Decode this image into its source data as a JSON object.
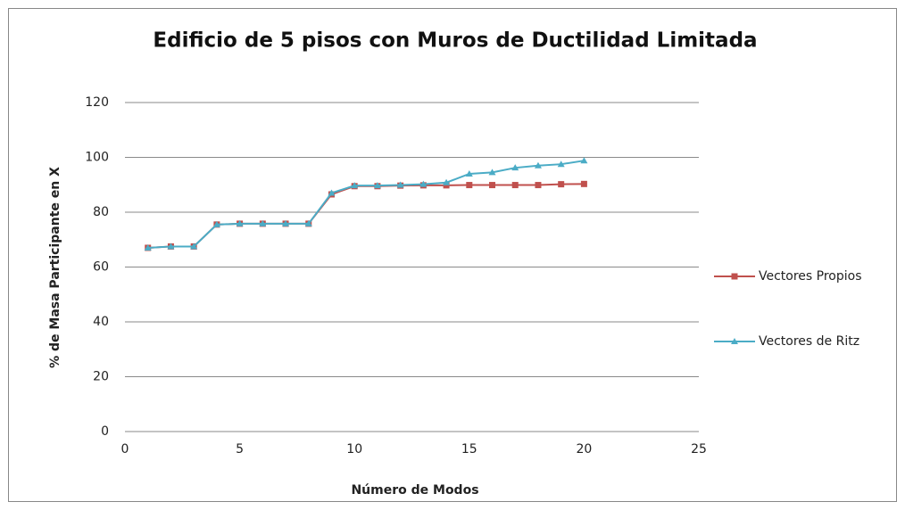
{
  "chart_data": {
    "type": "line",
    "title": "Edificio de 5 pisos con Muros de Ductilidad Limitada",
    "x_label": "Número de Modos",
    "y_label": "% de Masa  Participante en X",
    "x": [
      1,
      2,
      3,
      4,
      5,
      6,
      7,
      8,
      9,
      10,
      11,
      12,
      13,
      14,
      15,
      16,
      17,
      18,
      19,
      20
    ],
    "series": [
      {
        "name": "Vectores Propios",
        "color": "#c0504d",
        "marker": "square",
        "values": [
          67,
          67.5,
          67.5,
          75.5,
          75.8,
          75.8,
          75.8,
          75.8,
          86.5,
          89.5,
          89.5,
          89.7,
          89.8,
          89.8,
          89.9,
          89.9,
          89.9,
          89.9,
          90.2,
          90.3
        ]
      },
      {
        "name": "Vectores de Ritz",
        "color": "#4bacc6",
        "marker": "triangle",
        "values": [
          67,
          67.5,
          67.5,
          75.5,
          75.8,
          75.8,
          75.8,
          75.8,
          87,
          89.7,
          89.7,
          89.9,
          90.2,
          90.8,
          94,
          94.5,
          96.2,
          97,
          97.5,
          98.8
        ]
      }
    ],
    "xlim": [
      0,
      25
    ],
    "xticks": [
      0,
      5,
      10,
      15,
      20,
      25
    ],
    "ylim": [
      0,
      120
    ],
    "yticks": [
      0,
      20,
      40,
      60,
      80,
      100,
      120
    ],
    "grid": true,
    "legend": "right"
  }
}
